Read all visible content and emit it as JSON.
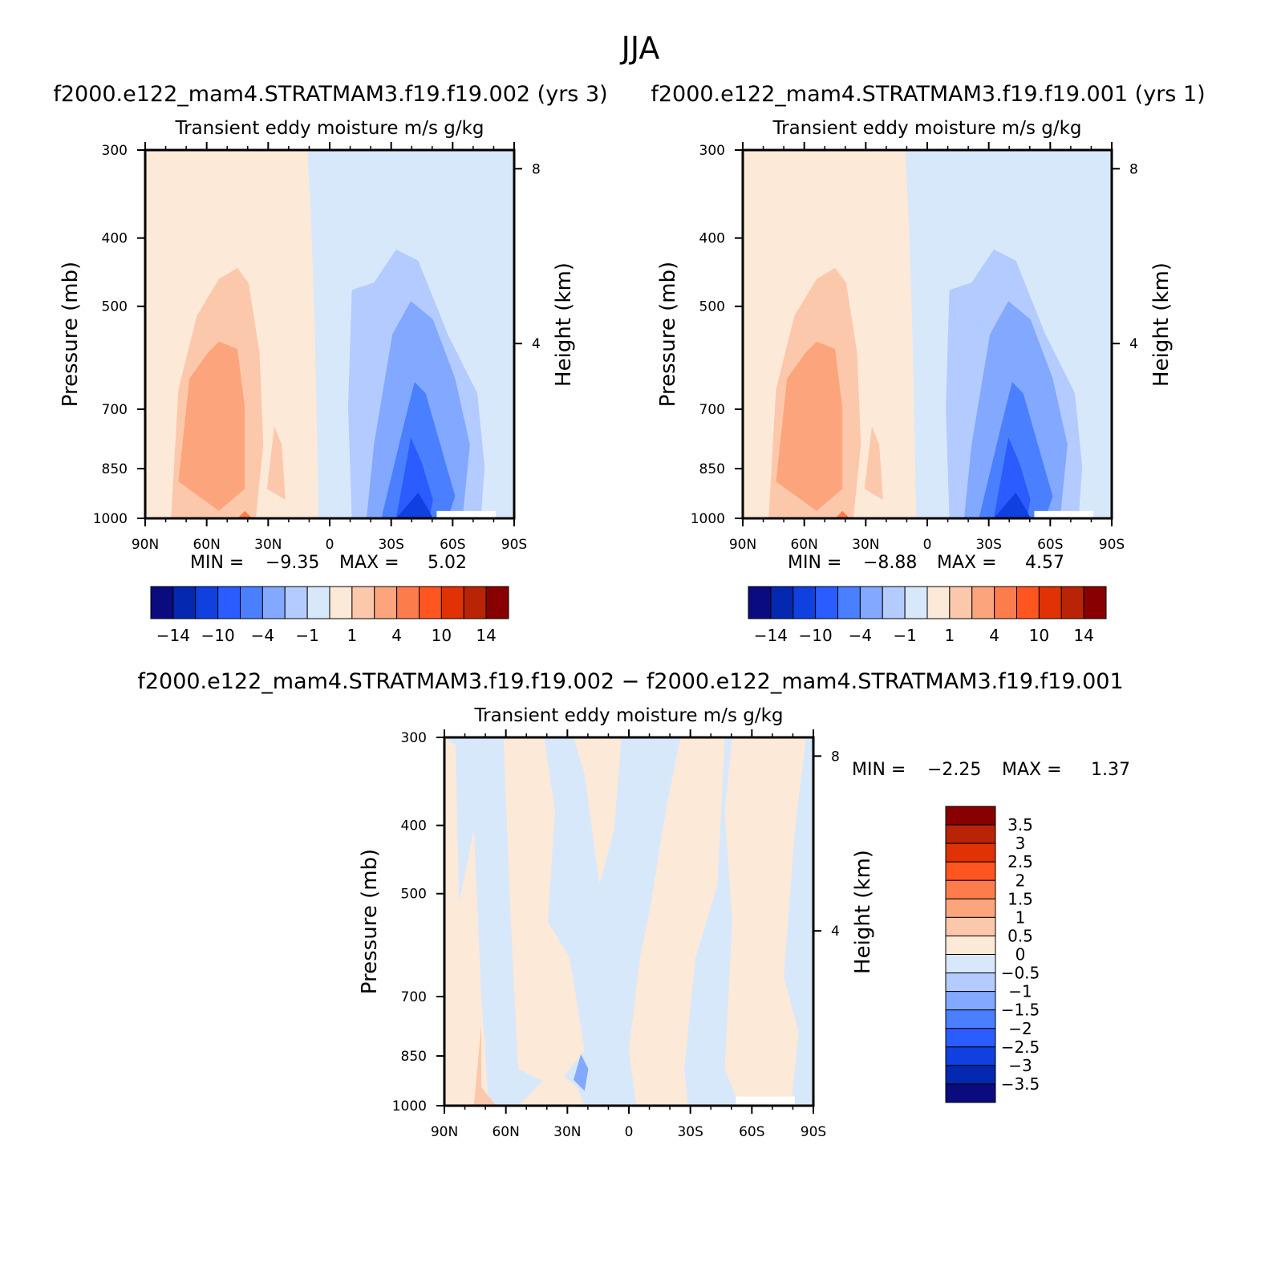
{
  "figure_title": "JJA",
  "chart_data": [
    {
      "type": "heatmap",
      "case_title": "f2000.e122_mam4.STRATMAM3.f19.f19.002 (yrs 3)",
      "title": "Transient eddy moisture m/s g/kg",
      "ylabel": "Pressure (mb)",
      "y2label": "Height (km)",
      "x_ticklabels": [
        "90N",
        "60N",
        "30N",
        "0",
        "30S",
        "60S",
        "90S"
      ],
      "y_ticklabels": [
        "300",
        "400",
        "500",
        "700",
        "850",
        "1000"
      ],
      "y2_ticklabels": [
        "8",
        "4"
      ],
      "xlim": [
        90,
        -90
      ],
      "ylim": [
        1000,
        300
      ],
      "min_label": "MIN =",
      "min_value": "−9.35",
      "max_label": "MAX =",
      "max_value": "5.02",
      "colorbar_labels": [
        "−14",
        "−10",
        "−4",
        "−1",
        "1",
        "4",
        "10",
        "14"
      ]
    },
    {
      "type": "heatmap",
      "case_title": "f2000.e122_mam4.STRATMAM3.f19.f19.001 (yrs 1)",
      "title": "Transient eddy moisture m/s g/kg",
      "ylabel": "Pressure (mb)",
      "y2label": "Height (km)",
      "x_ticklabels": [
        "90N",
        "60N",
        "30N",
        "0",
        "30S",
        "60S",
        "90S"
      ],
      "y_ticklabels": [
        "300",
        "400",
        "500",
        "700",
        "850",
        "1000"
      ],
      "y2_ticklabels": [
        "8",
        "4"
      ],
      "xlim": [
        90,
        -90
      ],
      "ylim": [
        1000,
        300
      ],
      "min_label": "MIN =",
      "min_value": "−8.88",
      "max_label": "MAX =",
      "max_value": "4.57",
      "colorbar_labels": [
        "−14",
        "−10",
        "−4",
        "−1",
        "1",
        "4",
        "10",
        "14"
      ]
    },
    {
      "type": "heatmap",
      "case_title": "f2000.e122_mam4.STRATMAM3.f19.f19.002 − f2000.e122_mam4.STRATMAM3.f19.f19.001",
      "title": "Transient eddy moisture m/s g/kg",
      "ylabel": "Pressure (mb)",
      "y2label": "Height (km)",
      "x_ticklabels": [
        "90N",
        "60N",
        "30N",
        "0",
        "30S",
        "60S",
        "90S"
      ],
      "y_ticklabels": [
        "300",
        "400",
        "500",
        "700",
        "850",
        "1000"
      ],
      "y2_ticklabels": [
        "8",
        "4"
      ],
      "xlim": [
        90,
        -90
      ],
      "ylim": [
        1000,
        300
      ],
      "min_label": "MIN =",
      "min_value": "−2.25",
      "max_label": "MAX =",
      "max_value": "1.37",
      "colorbar_labels": [
        "3.5",
        "3",
        "2.5",
        "2",
        "1.5",
        "1",
        "0.5",
        "0",
        "−0.5",
        "−1",
        "−1.5",
        "−2",
        "−2.5",
        "−3",
        "−3.5"
      ]
    }
  ],
  "colors": {
    "scale": [
      "#0b0b80",
      "#0428b0",
      "#1040e0",
      "#2a5cff",
      "#4a80ff",
      "#82a8ff",
      "#b4cbff",
      "#d8e8fb",
      "#fde9d7",
      "#fcc8ac",
      "#fca57d",
      "#fd7c4c",
      "#ff5520",
      "#e03205",
      "#b82405",
      "#880000"
    ],
    "diff_scale": [
      "#0b0b80",
      "#0428b0",
      "#1040e0",
      "#2a5cff",
      "#4a80ff",
      "#82a8ff",
      "#b4cbff",
      "#d8e8fb",
      "#fde9d7",
      "#fcc8ac",
      "#fca57d",
      "#fd7c4c",
      "#ff5520",
      "#e03205",
      "#b82405",
      "#880000"
    ]
  }
}
